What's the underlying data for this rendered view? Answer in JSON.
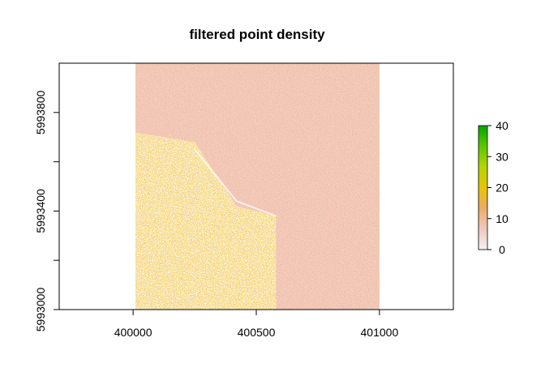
{
  "chart_data": {
    "type": "heatmap",
    "title": "filtered point density",
    "xlabel": "",
    "ylabel": "",
    "xlim": [
      399700,
      401300
    ],
    "ylim": [
      5993000,
      5994000
    ],
    "raster_extent": {
      "x": [
        400000,
        401000
      ],
      "y": [
        5993000,
        5994000
      ]
    },
    "x_ticks": [
      400000,
      400500,
      401000
    ],
    "x_tick_labels": [
      "400000",
      "400500",
      "401000"
    ],
    "y_ticks": [
      5993000,
      5993200,
      5993400,
      5993600,
      5993800
    ],
    "y_tick_labels": [
      "5993000",
      "",
      "5993400",
      "",
      "5993800"
    ],
    "legend": {
      "position": "right",
      "range": [
        0,
        40
      ],
      "ticks": [
        0,
        10,
        20,
        30,
        40
      ],
      "tick_labels": [
        "0",
        "10",
        "20",
        "30",
        "40"
      ],
      "colors": [
        "#f2f2f2",
        "#f0c9c0",
        "#ecac67",
        "#e6c500",
        "#b6d400",
        "#5bc800",
        "#00a600"
      ]
    },
    "grid": false,
    "dominant_value_color": "#eeb8a4"
  }
}
